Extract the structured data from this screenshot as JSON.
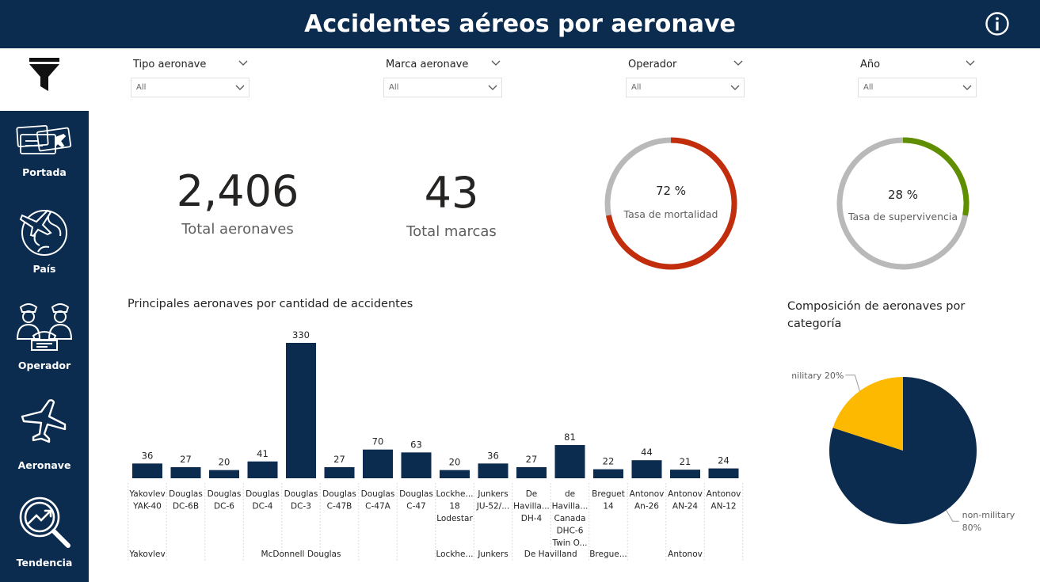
{
  "header": {
    "title": "Accidentes aéreos por aeronave"
  },
  "icons": {
    "info": "info-icon",
    "filter": "filter-icon"
  },
  "sidebar": {
    "items": [
      {
        "label": "Portada",
        "icon": "tickets-icon"
      },
      {
        "label": "País",
        "icon": "globe-plane-icon"
      },
      {
        "label": "Operador",
        "icon": "pilots-icon"
      },
      {
        "label": "Aeronave",
        "icon": "airplane-icon"
      },
      {
        "label": "Tendencia",
        "icon": "trend-magnifier-icon"
      }
    ]
  },
  "filters": [
    {
      "title": "Tipo aeronave",
      "value": "All"
    },
    {
      "title": "Marca aeronave",
      "value": "All"
    },
    {
      "title": "Operador",
      "value": "All"
    },
    {
      "title": "Año",
      "value": "All"
    }
  ],
  "kpis": {
    "total_aeronaves": {
      "value": "2,406",
      "label": "Total aeronaves"
    },
    "total_marcas": {
      "value": "43",
      "label": "Total marcas"
    },
    "mortalidad": {
      "value": "72 %",
      "label": "Tasa de mortalidad",
      "fraction": 0.72,
      "color": "#c22d0c",
      "track": "#b9b9b9"
    },
    "supervivencia": {
      "value": "28 %",
      "label": "Tasa de supervivencia",
      "fraction": 0.28,
      "color": "#5f8f00",
      "track": "#b9b9b9"
    }
  },
  "chart_data": [
    {
      "type": "bar",
      "title": "Principales aeronaves por cantidad de accidentes",
      "color": "#0b2b4f",
      "categories": [
        {
          "label": [
            "Yakovlev",
            "YAK-40"
          ],
          "value": 36
        },
        {
          "label": [
            "Douglas",
            "DC-6B"
          ],
          "value": 27
        },
        {
          "label": [
            "Douglas",
            "DC-6"
          ],
          "value": 20
        },
        {
          "label": [
            "Douglas",
            "DC-4"
          ],
          "value": 41
        },
        {
          "label": [
            "Douglas",
            "DC-3"
          ],
          "value": 330
        },
        {
          "label": [
            "Douglas",
            "C-47B"
          ],
          "value": 27
        },
        {
          "label": [
            "Douglas",
            "C-47A"
          ],
          "value": 70
        },
        {
          "label": [
            "Douglas",
            "C-47"
          ],
          "value": 63
        },
        {
          "label": [
            "Lockhe...",
            "18",
            "Lodestar"
          ],
          "value": 20
        },
        {
          "label": [
            "Junkers",
            "JU-52/..."
          ],
          "value": 36
        },
        {
          "label": [
            "De",
            "Havilla...",
            "DH-4"
          ],
          "value": 27
        },
        {
          "label": [
            "de",
            "Havilla...",
            "Canada",
            "DHC-6",
            "Twin O..."
          ],
          "value": 81
        },
        {
          "label": [
            "Breguet",
            "14"
          ],
          "value": 22
        },
        {
          "label": [
            "Antonov",
            "An-26"
          ],
          "value": 44
        },
        {
          "label": [
            "Antonov",
            "AN-24"
          ],
          "value": 21
        },
        {
          "label": [
            "Antonov",
            "AN-12"
          ],
          "value": 24
        }
      ],
      "groups": [
        {
          "label": "Yakovlev",
          "start": 0,
          "end": 0
        },
        {
          "label": "McDonnell Douglas",
          "start": 1,
          "end": 7
        },
        {
          "label": "Lockhe...",
          "start": 8,
          "end": 8
        },
        {
          "label": "Junkers",
          "start": 9,
          "end": 9
        },
        {
          "label": "De Havilland",
          "start": 10,
          "end": 11
        },
        {
          "label": "Bregue...",
          "start": 12,
          "end": 12
        },
        {
          "label": "Antonov",
          "start": 13,
          "end": 15
        }
      ],
      "ylim": [
        0,
        330
      ]
    },
    {
      "type": "pie",
      "title": "Composición de aeronaves por categoría",
      "slices": [
        {
          "name": "non-military",
          "value": 80,
          "label": [
            "non-military",
            "80%"
          ],
          "color": "#0b2b4f"
        },
        {
          "name": "military",
          "value": 20,
          "label": [
            "military 20%"
          ],
          "color": "#fdb900"
        }
      ]
    }
  ]
}
